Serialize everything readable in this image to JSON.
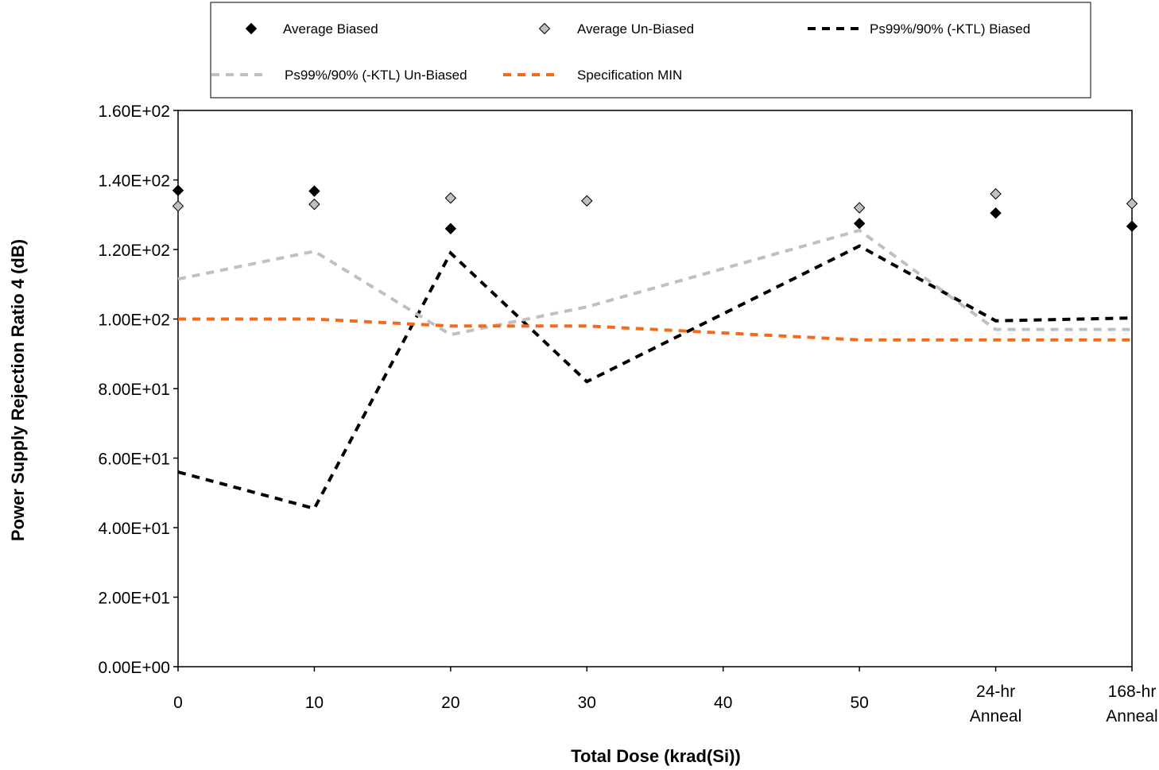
{
  "chart_data": {
    "type": "line",
    "title": "",
    "xlabel": "Total Dose (krad(Si))",
    "ylabel": "Power Supply Rejection Ratio 4 (dB)",
    "ylim": [
      0,
      160
    ],
    "xlim": [
      0,
      70
    ],
    "y_ticks": [
      "0.00E+00",
      "2.00E+01",
      "4.00E+01",
      "6.00E+01",
      "8.00E+01",
      "1.00E+02",
      "1.20E+02",
      "1.40E+02",
      "1.60E+02"
    ],
    "x_ticks": [
      {
        "x": 0,
        "lines": [
          "0"
        ]
      },
      {
        "x": 10,
        "lines": [
          "10"
        ]
      },
      {
        "x": 20,
        "lines": [
          "20"
        ]
      },
      {
        "x": 30,
        "lines": [
          "30"
        ]
      },
      {
        "x": 40,
        "lines": [
          "40"
        ]
      },
      {
        "x": 50,
        "lines": [
          "50"
        ]
      },
      {
        "x": 60,
        "lines": [
          "24-hr",
          "Anneal"
        ]
      },
      {
        "x": 70,
        "lines": [
          "168-hr",
          "Anneal"
        ]
      }
    ],
    "grid": false,
    "legend_position": "top",
    "series": [
      {
        "name": "Average Biased",
        "kind": "marker",
        "color": "#000000",
        "x": [
          0,
          10,
          20,
          50,
          60,
          70
        ],
        "y": [
          137,
          136.8,
          126,
          127.5,
          130.5,
          126.7
        ]
      },
      {
        "name": "Average Un-Biased",
        "kind": "marker",
        "color": "#c0c0c0",
        "x": [
          0,
          10,
          20,
          30,
          50,
          60,
          70
        ],
        "y": [
          132.5,
          133,
          134.8,
          134,
          132,
          136,
          133.2
        ]
      },
      {
        "name": "Ps99%/90% (-KTL) Biased",
        "kind": "line",
        "color": "#000000",
        "x": [
          0,
          10,
          20,
          30,
          50,
          60,
          70
        ],
        "y": [
          56,
          45.5,
          119,
          82,
          121,
          99.5,
          100.3
        ]
      },
      {
        "name": "Ps99%/90% (-KTL) Un-Biased",
        "kind": "line",
        "color": "#c0c0c0",
        "x": [
          0,
          10,
          20,
          30,
          50,
          60,
          70
        ],
        "y": [
          111.5,
          119.5,
          95.5,
          103.5,
          125.5,
          97,
          97
        ]
      },
      {
        "name": "Specification MIN",
        "kind": "line",
        "color": "#f26b1d",
        "x": [
          0,
          10,
          20,
          30,
          50,
          60,
          70
        ],
        "y": [
          100,
          100,
          98,
          98,
          94,
          94,
          94
        ]
      }
    ]
  }
}
